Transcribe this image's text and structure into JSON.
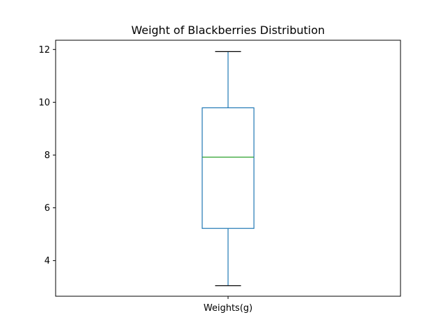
{
  "chart_data": {
    "type": "box",
    "title": "Weight of Blackberries Distribution",
    "categories": [
      "Weights(g)"
    ],
    "boxes": [
      {
        "category": "Weights(g)",
        "whisker_low": 3.05,
        "q1": 5.22,
        "median": 7.92,
        "q3": 9.79,
        "whisker_high": 11.92
      }
    ],
    "yticks": [
      4,
      6,
      8,
      10,
      12
    ],
    "ylim": [
      2.65,
      12.35
    ],
    "grid": false,
    "colors": {
      "box": "#1f77b4",
      "median": "#2ca02c",
      "whisker_cap": "#000000"
    }
  }
}
